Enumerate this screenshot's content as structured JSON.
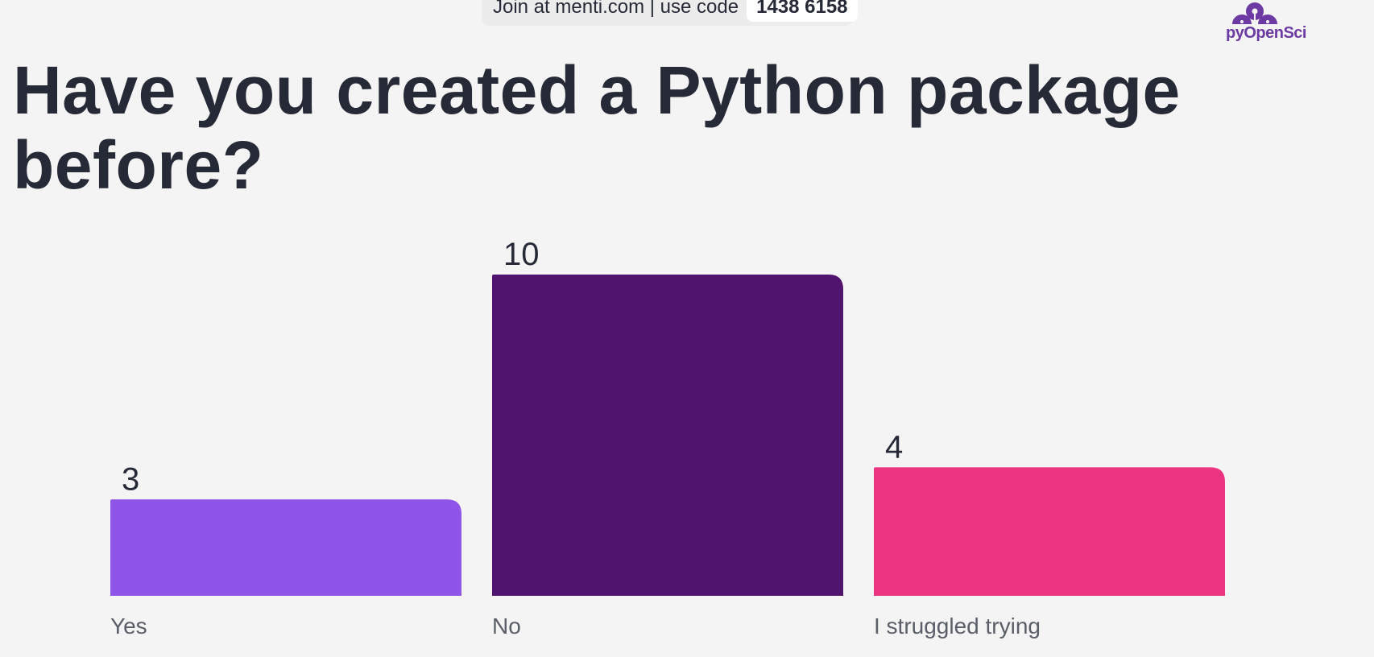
{
  "banner": {
    "join_text": "Join at menti.com | use code",
    "code": "1438 6158"
  },
  "logo": {
    "text": "pyOpenSci",
    "icon": "pyopensci-flower-logo",
    "color": "#6d3aa3"
  },
  "chart_data": {
    "type": "bar",
    "title": "Have you created a Python package before?",
    "categories": [
      "Yes",
      "No",
      "I struggled trying"
    ],
    "values": [
      3,
      10,
      4
    ],
    "colors": [
      "#8f55e8",
      "#51146e",
      "#ec3580"
    ],
    "ylim": [
      0,
      10
    ],
    "grid": false,
    "xlabel": "",
    "ylabel": ""
  }
}
